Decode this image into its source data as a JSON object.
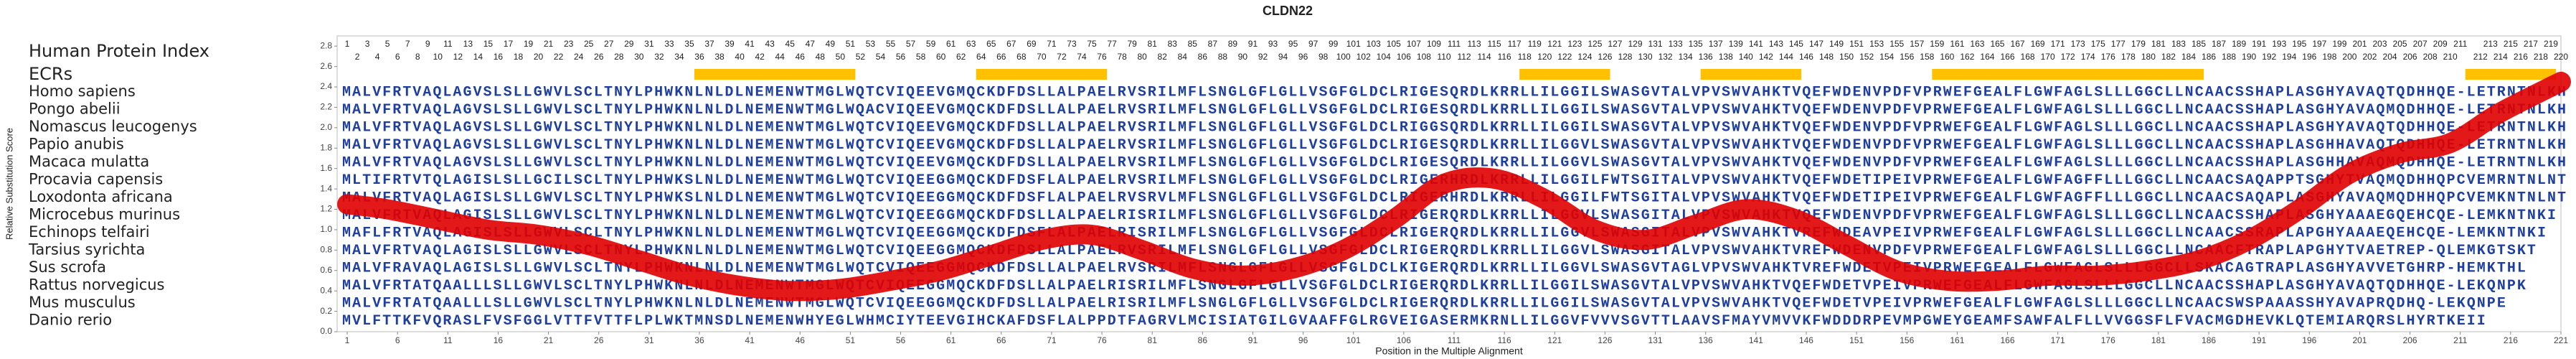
{
  "chart_data": {
    "type": "alignment",
    "title": "CLDN22",
    "xlabel": "Position in the Multiple Alignment",
    "ylabel": "Relative Substitution Score",
    "index_label": "Human Protein Index",
    "ecr_label": "ECRs",
    "xlim": [
      0,
      221
    ],
    "ylim": [
      0,
      2.9
    ],
    "xticks": [
      1,
      6,
      11,
      16,
      21,
      26,
      31,
      36,
      41,
      46,
      51,
      56,
      61,
      66,
      71,
      76,
      81,
      86,
      91,
      96,
      101,
      106,
      111,
      116,
      121,
      126,
      131,
      136,
      141,
      146,
      151,
      156,
      161,
      166,
      171,
      176,
      181,
      186,
      191,
      196,
      201,
      206,
      211,
      216,
      221
    ],
    "yticks": [
      {
        "value": 0,
        "label": "0.0"
      },
      0.2,
      0.4,
      0.6,
      0.8,
      {
        "value": 1,
        "label": "1.0"
      },
      1.2,
      1.4,
      1.6,
      1.8,
      {
        "value": 2,
        "label": "2.0"
      },
      2.2,
      2.4,
      2.6,
      2.8
    ],
    "human_protein_index": [
      1,
      2,
      3,
      4,
      5,
      6,
      7,
      8,
      9,
      10,
      11,
      12,
      13,
      14,
      15,
      16,
      17,
      18,
      19,
      20,
      21,
      22,
      23,
      24,
      25,
      26,
      27,
      28,
      29,
      30,
      31,
      32,
      33,
      34,
      35,
      36,
      37,
      38,
      39,
      40,
      41,
      42,
      43,
      44,
      45,
      46,
      47,
      48,
      49,
      50,
      51,
      52,
      53,
      54,
      55,
      56,
      57,
      58,
      59,
      60,
      61,
      62,
      63,
      64,
      65,
      66,
      67,
      68,
      69,
      70,
      71,
      72,
      73,
      74,
      75,
      76,
      77,
      78,
      79,
      80,
      81,
      82,
      83,
      84,
      85,
      86,
      87,
      88,
      89,
      90,
      91,
      92,
      93,
      94,
      95,
      96,
      97,
      98,
      99,
      100,
      101,
      102,
      103,
      104,
      105,
      106,
      107,
      108,
      109,
      110,
      111,
      112,
      113,
      114,
      115,
      116,
      117,
      118,
      119,
      120,
      121,
      122,
      123,
      124,
      125,
      126,
      127,
      128,
      129,
      130,
      131,
      132,
      133,
      134,
      135,
      136,
      137,
      138,
      139,
      140,
      141,
      142,
      143,
      144,
      145,
      146,
      147,
      148,
      149,
      150,
      151,
      152,
      153,
      154,
      155,
      156,
      157,
      158,
      159,
      160,
      161,
      162,
      163,
      164,
      165,
      166,
      167,
      168,
      169,
      170,
      171,
      172,
      173,
      174,
      175,
      176,
      177,
      178,
      179,
      180,
      181,
      182,
      183,
      184,
      185,
      186,
      187,
      188,
      189,
      190,
      191,
      192,
      193,
      194,
      195,
      196,
      197,
      198,
      199,
      200,
      201,
      202,
      203,
      204,
      205,
      206,
      207,
      208,
      209,
      210,
      211,
      null,
      212,
      213,
      214,
      215,
      216,
      217,
      218,
      219,
      220
    ],
    "ecrs": [
      {
        "start": 36,
        "end": 51
      },
      {
        "start": 64,
        "end": 76
      },
      {
        "start": 118,
        "end": 126
      },
      {
        "start": 136,
        "end": 145
      },
      {
        "start": 159,
        "end": 185
      },
      {
        "start": 212,
        "end": 220
      }
    ],
    "ecr_color": "#ffc000",
    "series": [
      {
        "name": "Homo sapiens",
        "sequence": "MALVFRTVAQLAGVSLSLLGWVLSCLTNYLPHWKNLNLDLNEMENWTMGLWQTCVIQEEVGMQCKDFDSLLALPAELRVSRILMFLSNGLGFLGLLVSGFGLDCLRIGESQRDLKRRLLILGGILSWASGVTALVPVSWVAHKTVQEFWDENVPDFVPRWEFGEALFLGWFAGLSLLLGGCLLNCAACSSHAPLASGHYAVAQTQDHHQE-LETRNTNLKH"
      },
      {
        "name": "Pongo abelii",
        "sequence": "MALVFRTVAQLAGVSLSLLGWVLSCLTNYLPHWKNLNLDLNEMENWTMGLWQACVIQEEVGMQCKDFDSLLALPAELRVSRILMFLSNGLGFLGLLVSGFGLDCLRIGESQRDLKRRLLILGGILSWASGVTALVPVSWVAHKTVQEFWDENVPDFVPRWEFGEALFLGWFAGLSLLLGGCLLNCAACSSHAPLASGHYAVAQMQDHHQE-LETRNTNLKH"
      },
      {
        "name": "Nomascus leucogenys",
        "sequence": "MALVFRTVAQLAGVSLSLLGWVLSCLTNYLPHWKNLNLDLNEMENWTMGLWQTCVIQEEVGMQCKDFDSLLALPAELRVSRILMFLSNGLGFLGLLVSGFGLDCLRIGGSQRDLKRRLLILGGILSWASGVTALVPVSWVAHKTVQEFWDENVPDFVPRWEFGEALFLGWFAGLSLLLGGCLLNCAACSSHAPLASGHYAVAQTQDHHQE-LETRNTNLKH"
      },
      {
        "name": "Papio anubis",
        "sequence": "MALVFRTVAQLAGVSLSLLGWVLSCLTNYLPHWKNLNLDLNEMENWTMGLWQTCVIQEEVGMQCKDFDSLLALPAELRVSRILMFLSNGLGFLGLLVSGFGLDCLRIGESQRDLKRRLLILGGVLSWASGVTALVPVSWVAHKTVQEFWDENVPDFVPRWEFGEALFLGWFAGLSLLLGGCLLNCAACSSHAPLASGHHAVAQTQDHHQE-LETRNTNLKH"
      },
      {
        "name": "Macaca mulatta",
        "sequence": "MALVFRTVAQLAGVSLSLLGWVLSCLTNYLPHWKNLNLDLNEMENWTMGLWQTCVIQEEVGMQCKDFDSLLALPAELRVSRILMFLSNGLGFLGLLVSGFGLDCLRIGESQRDLKRRLLILGGVLSWASGVTALVPVSWVAHKTVQEFWDENVPDFVPRWEFGEALFLGWFAGLSLLLGGCLLNCAACSSHAPLASGHHAVAQMQDHHQE-LETRNTNLKH"
      },
      {
        "name": "Procavia capensis",
        "sequence": "MLTIFRTVTQLAGISLSLLGCILSCLTNYLPHWKSLNLDLNEMENWTMGLWQTCVIQEEGGMQCKDFDSFLALPAELRVSRILMFLSNGLGFLGLLVSGFGLDCLRIGERHRDLKRRLLILGGILFWTSGITALVPVSWVAHKTVQEFWDETIPEIVPRWEFGEALFLGWFAGFFLLLGGCLLNCAACSAQAPPTSGHYTVAQMQDHHQPCVEMRNTNLNT"
      },
      {
        "name": "Loxodonta africana",
        "sequence": "MALVFRTVAQLAGISLSLLGWVLSCLTNYLPHWKSLNLDLNEMENWTMGLWQTCVIQEEGGMQCKDFDSFLALPAELRVSRVLMFLSNGLGFLGLLVSGFGLDCLRIGERHRDLKRRLLILGGILFWTSGITALVPVSWVAHKTVQEFWDETIPEIVPRWEFGEALFLGWFAGFFLLLGGCLLNCAACSAQAPLASGHYAVAQMQDHHQPCVEMKNTNLNT"
      },
      {
        "name": "Microcebus murinus",
        "sequence": "MALVFRTVAQLAGISLSLLGWVLSCLTNYLPHWKNLNLDLNEMENWTMGLWQTCVIQEEGGMQCKDFDSLLALPAELRISRILMFLSNGLGFLGLLVSGFGLDCLRIGERQRDLKRRLLILGGVLSWASGITALVPVSWVAHKTVQEFWDENVPDFVPRWEFGEALFLGWFAGLSLLLGGCLLNCAACSSHAPLASGHYAAAEGQEHCQE-LEMKNTNKI"
      },
      {
        "name": "Echinops telfairi",
        "sequence": "MAFLFRTVAQLAGISLSLLGWVLSCLTNYLPHWKNLNLDLNEMENWTMGLWQTCVIQEEGGMQCKDFDSFLALPAELRISRILMFLSNGLGFLGLLVSGFGLDCLRIGERQRDLKRRLLILGGVLSWASGITALVPVSWVAHKTVREFWDEAVPEIVPRWEFGEALFLGWFAGLSLLLGGCLLNCAACSSRAPLAPGHYAAAEQEHCQE-LEMKNTNKI"
      },
      {
        "name": "Tarsius syrichta",
        "sequence": "MALVFRTVAQLAGISLSLLGWVLSCLTNYLPHWKNLNLDLNEMENWTMGLWQTCVIQEEGGMQCKDFDSLLALPAELRVSRILMFLSNGLGFLGLLVSGFGLDCLRIGERQRDLKRRLLILGGVLSWASGITALVPVSWVAHKTVREFWDENVPDFVPRWEFGEALFLGWFAGLSLLLGGCLLNCAACFTRAPLAPGHYTVAETREP-QLEMKGTSKT"
      },
      {
        "name": "Sus scrofa",
        "sequence": "MALVFRAVAQLAGISLSLLGWVLSCLTNYLPHWKNLNLDLNEMENWTMGLWQTCVIQEEGGMQCKDFDSLLALPAELRVSRILMFLSNGLGFLGLLVSGFGLDCLKIGERQRDLKRRLLILGGVLSWASGVTAGLVPVSWVAHKTVREFWDETVPEIVPRWEFGEALFLGWFAGLSLLLGGCLLSKACAGTRAPLASGHYAVVETGHRP-HEMKTHL"
      },
      {
        "name": "Rattus norvegicus",
        "sequence": "MALVFRTATQAALLLSLLGWVLSCLTNYLPHWKNLNLDLNEMENWTMGLWQTCVIQEEGGMQCKDFDSLLALPAELRISRILMFLSNGLGFLGLLVSGFGLDCLRIGERQRDLKRRLLILGGILSWASGVTALVPVSWVAHKTVQEFWDETVPEIVPRWEFGEALFLGWFAGLSLLLGGCLLNCAACSSHAPLASGHYAVAQTQDHHQE-LEKQNPK"
      },
      {
        "name": "Mus musculus",
        "sequence": "MALVFRTATQAALLLSLLGWVLSCLTNYLPHWKNLNLDLNEMENWTMGLWQTCVIQEEGGMQCKDFDSLLALPAELRISRILMFLSNGLGFLGLLVSGFGLDCLRIGERQRDLKRRLLILGGILSWASGVTALVPVSWVAHKTVQEFWDETVPEIVPRWEFGEALFLGWFAGLSLLLGGCLLNCAACSWSPAAASSHYAVAPRQDHQ-LEKQNPE"
      },
      {
        "name": "Danio rerio",
        "sequence": "MVLFTTKFVQRASLFVSFGGLVTTFVTTFLPLWKTMNSDLNEMENWHYEGLWHMCIYTEEVGIHCKAFDSFLALPPDTFAGRVLMCISIATGILGVAAFFGLRGVEIGASERMKRNLLILGGVFVVVSGVTTLAAVSFMAYVMVVKFWDDDRPEVMPGWEYGEAMFSAWFALFLLVVGGSFLFVACMGDHEVKLQTEMIARQRSLHYRTKEII"
      }
    ],
    "score": {
      "color": "#e00000",
      "x": [
        1,
        5,
        10,
        15,
        20,
        25,
        30,
        35,
        40,
        45,
        50,
        55,
        60,
        65,
        70,
        75,
        80,
        85,
        90,
        95,
        100,
        105,
        110,
        115,
        120,
        125,
        130,
        135,
        140,
        145,
        150,
        155,
        160,
        165,
        170,
        175,
        180,
        185,
        190,
        195,
        200,
        205,
        210,
        215,
        221
      ],
      "y": [
        1.25,
        1.2,
        1.1,
        1.0,
        0.95,
        0.85,
        0.7,
        0.55,
        0.45,
        0.4,
        0.42,
        0.5,
        0.6,
        0.75,
        0.9,
        0.95,
        0.8,
        0.62,
        0.55,
        0.62,
        0.8,
        1.1,
        1.45,
        1.5,
        1.3,
        1.0,
        0.9,
        1.05,
        1.2,
        1.1,
        0.85,
        0.6,
        0.5,
        0.5,
        0.55,
        0.55,
        0.6,
        0.7,
        0.9,
        1.2,
        1.55,
        1.75,
        1.85,
        2.15,
        2.45
      ]
    }
  }
}
